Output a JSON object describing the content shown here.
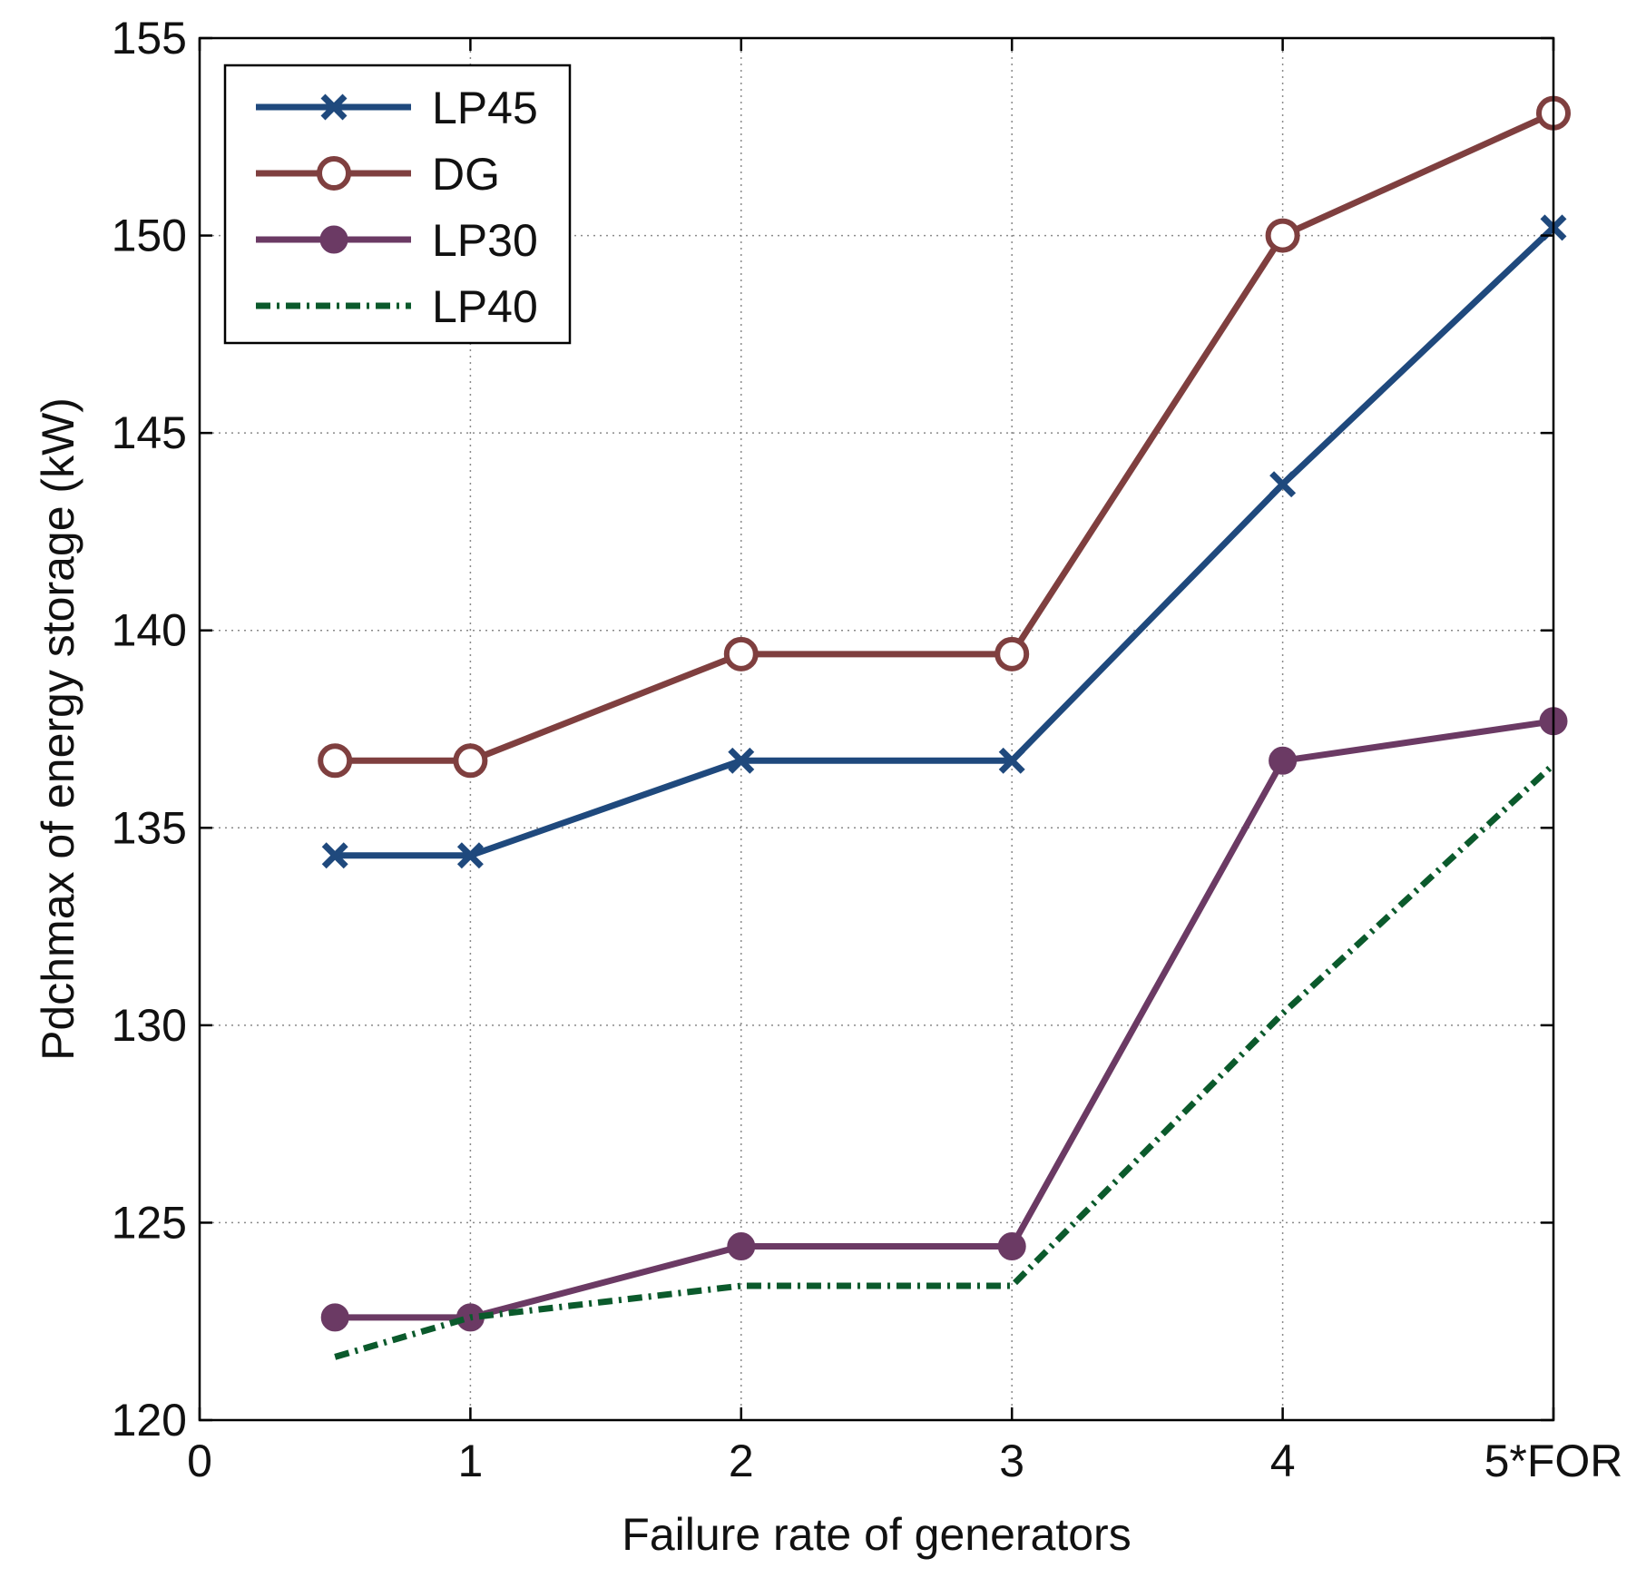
{
  "chart_data": {
    "type": "line",
    "title": "",
    "xlabel": "Failure rate of generators",
    "ylabel": "Pdchmax of energy storage (kW)",
    "xlim": [
      0,
      5
    ],
    "ylim": [
      120,
      155
    ],
    "x_ticks": [
      0,
      1,
      2,
      3,
      4,
      5
    ],
    "x_tick_labels": [
      "0",
      "1",
      "2",
      "3",
      "4",
      "5*FOR"
    ],
    "y_ticks": [
      120,
      125,
      130,
      135,
      140,
      145,
      150,
      155
    ],
    "y_tick_labels": [
      "120",
      "125",
      "130",
      "135",
      "140",
      "145",
      "150",
      "155"
    ],
    "grid": true,
    "legend_position": "top-left",
    "x": [
      0.5,
      1,
      2,
      3,
      4,
      5
    ],
    "series": [
      {
        "name": "LP45",
        "color": "#1f497d",
        "marker": "x",
        "dash": "solid",
        "values": [
          134.3,
          134.3,
          136.7,
          136.7,
          143.7,
          150.2
        ]
      },
      {
        "name": "DG",
        "color": "#7f3f3f",
        "marker": "o",
        "dash": "solid",
        "values": [
          136.7,
          136.7,
          139.4,
          139.4,
          150.0,
          153.1
        ]
      },
      {
        "name": "LP30",
        "color": "#6b3a64",
        "marker": "filled-circle",
        "dash": "solid",
        "values": [
          122.6,
          122.6,
          124.4,
          124.4,
          136.7,
          137.7
        ]
      },
      {
        "name": "LP40",
        "color": "#0b5a2c",
        "marker": "none",
        "dash": "dashdot",
        "values": [
          121.6,
          122.6,
          123.4,
          123.4,
          130.3,
          136.6
        ]
      }
    ]
  }
}
